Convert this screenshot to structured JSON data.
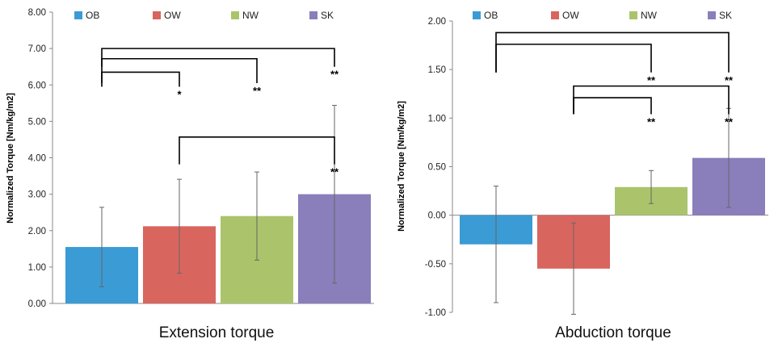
{
  "colors": {
    "OB": "#3a9bd5",
    "OW": "#d9655f",
    "NW": "#abc46b",
    "SK": "#8a7fbb",
    "axis": "#888888",
    "error_bar": "#666666",
    "bracket": "#000000"
  },
  "chart_data": [
    {
      "type": "bar",
      "title": "Extension torque",
      "ylabel": "Normalized Torque [Nm/kg/m2]",
      "xlabel": "",
      "ylim": [
        0,
        8
      ],
      "yticks": [
        "0.00",
        "1.00",
        "2.00",
        "3.00",
        "4.00",
        "5.00",
        "6.00",
        "7.00",
        "8.00"
      ],
      "ytick_values": [
        0,
        1,
        2,
        3,
        4,
        5,
        6,
        7,
        8
      ],
      "grid": false,
      "legend_position": "top",
      "categories": [
        "OB",
        "OW",
        "NW",
        "SK"
      ],
      "values": [
        1.55,
        2.12,
        2.4,
        3.0
      ],
      "errors": [
        1.09,
        1.29,
        1.21,
        2.44
      ],
      "significance": [
        {
          "from": "OB",
          "to": "OW",
          "label": "*",
          "bracket_y": 6.35,
          "drop_y": 5.95
        },
        {
          "from": "OB",
          "to": "NW",
          "label": "**",
          "bracket_y": 6.72,
          "drop_y": 6.05
        },
        {
          "from": "OB",
          "to": "SK",
          "label": "**",
          "bracket_y": 7.0,
          "drop_y": 6.5
        },
        {
          "from": "OW",
          "to": "SK",
          "label": "**",
          "bracket_y": 4.57,
          "drop_y": 3.82
        }
      ]
    },
    {
      "type": "bar",
      "title": "Abduction torque",
      "ylabel": "Normalized Torque [Nm/kg/m2]",
      "xlabel": "",
      "ylim": [
        -1,
        2
      ],
      "yticks": [
        "-1.00",
        "-0.50",
        "0.00",
        "0.50",
        "1.00",
        "1.50",
        "2.00"
      ],
      "ytick_values": [
        -1,
        -0.5,
        0,
        0.5,
        1,
        1.5,
        2
      ],
      "grid": false,
      "legend_position": "top",
      "categories": [
        "OB",
        "OW",
        "NW",
        "SK"
      ],
      "values": [
        -0.3,
        -0.55,
        0.29,
        0.59
      ],
      "errors": [
        0.6,
        0.47,
        0.17,
        0.51
      ],
      "significance": [
        {
          "from": "OB",
          "to": "SK",
          "label": "**",
          "bracket_y": 1.88,
          "drop_y": 1.47
        },
        {
          "from": "OB",
          "to": "NW",
          "label": "**",
          "bracket_y": 1.76,
          "drop_y": 1.47
        },
        {
          "from": "OW",
          "to": "SK",
          "label": "**",
          "bracket_y": 1.33,
          "drop_y": 1.04
        },
        {
          "from": "OW",
          "to": "NW",
          "label": "**",
          "bracket_y": 1.21,
          "drop_y": 1.04
        }
      ]
    }
  ]
}
